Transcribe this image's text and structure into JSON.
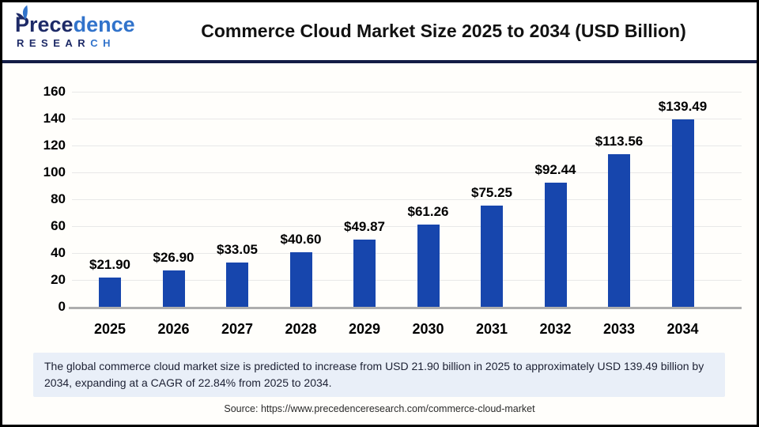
{
  "header": {
    "logo": {
      "name_dark": "Prece",
      "name_light": "dence",
      "sub_dark": "RESEAR",
      "sub_light": "CH"
    },
    "title": "Commerce Cloud Market Size 2025 to 2034 (USD Billion)"
  },
  "chart_data": {
    "type": "bar",
    "title": "Commerce Cloud Market Size 2025 to 2034 (USD Billion)",
    "unit": "USD Billion",
    "categories": [
      "2025",
      "2026",
      "2027",
      "2028",
      "2029",
      "2030",
      "2031",
      "2032",
      "2033",
      "2034"
    ],
    "values": [
      21.9,
      26.9,
      33.05,
      40.6,
      49.87,
      61.26,
      75.25,
      92.44,
      113.56,
      139.49
    ],
    "value_labels": [
      "$21.90",
      "$26.90",
      "$33.05",
      "$40.60",
      "$49.87",
      "$61.26",
      "$75.25",
      "$92.44",
      "$113.56",
      "$139.49"
    ],
    "xlabel": "",
    "ylabel": "",
    "ylim": [
      0,
      160
    ],
    "ytick_step": 20,
    "grid": true,
    "legend": "none",
    "bar_color": "#1746ad"
  },
  "footer": {
    "note": "The global commerce cloud market size is predicted to increase from USD 21.90 billion in 2025 to approximately USD 139.49 billion by 2034, expanding at a CAGR of 22.84% from 2025 to 2034.",
    "source": "Source: https://www.precedenceresearch.com/commerce-cloud-market"
  },
  "colors": {
    "bar": "#1746ad",
    "header_divider": "#131c45",
    "logo_dark": "#1d2a67",
    "logo_light": "#3173cb",
    "note_background": "#e9eff8",
    "gridline": "#e8e8e8",
    "axis_line": "#aeaeae",
    "page_border": "#000000"
  }
}
